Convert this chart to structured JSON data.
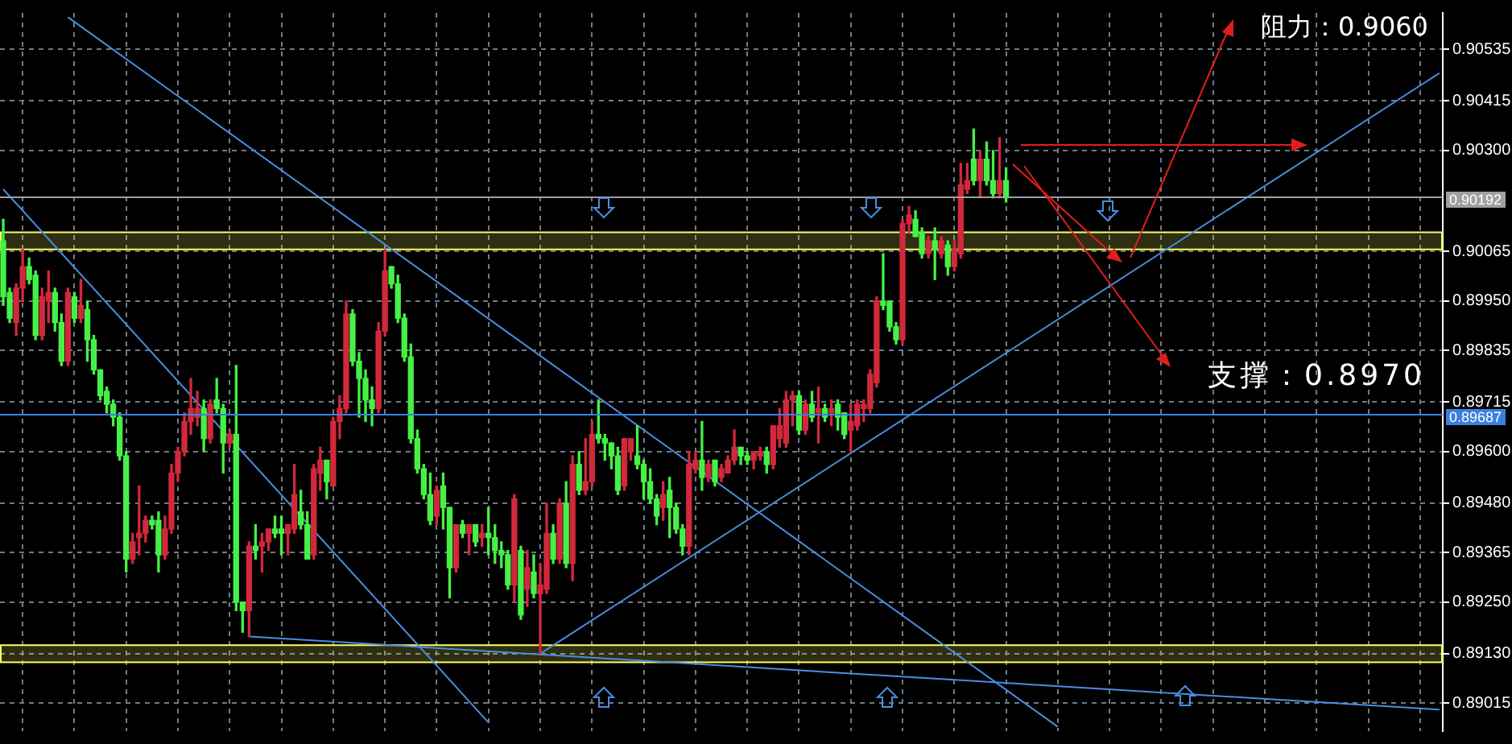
{
  "chart_data": {
    "type": "candlestick",
    "categories": [
      null,
      null,
      null,
      null,
      null,
      null,
      null,
      null,
      null,
      null,
      null,
      null,
      null,
      null,
      null,
      null,
      null,
      null,
      null,
      null,
      null,
      null,
      null,
      null,
      null,
      null,
      null,
      null,
      null,
      null,
      null,
      null,
      null,
      null,
      null,
      null,
      null,
      null,
      null,
      null,
      null,
      null,
      null,
      null,
      null,
      null,
      null,
      null,
      null,
      null,
      null,
      null,
      null,
      null,
      null,
      null,
      null,
      null,
      null,
      null,
      null,
      null,
      null,
      null,
      null,
      null,
      null,
      null,
      null,
      null,
      null,
      null,
      null,
      null,
      null,
      null,
      null,
      null,
      null,
      null,
      null,
      null,
      null,
      null,
      null,
      null,
      null,
      null,
      null,
      null,
      null,
      null,
      null,
      null,
      null,
      null,
      null,
      null,
      null,
      null,
      null,
      null,
      null,
      null,
      null,
      null,
      null,
      null,
      null,
      null,
      null,
      null,
      null,
      null,
      null,
      null,
      null,
      null,
      null,
      null,
      null,
      null,
      null,
      null,
      null,
      null,
      null,
      null,
      null,
      null,
      null,
      null,
      null,
      null,
      null,
      null,
      null,
      null,
      null,
      null,
      null,
      null,
      null,
      null,
      null,
      null,
      null,
      null,
      null,
      null,
      null,
      null,
      null,
      null,
      null,
      null,
      null,
      null,
      null,
      null,
      null,
      null,
      null,
      null,
      null,
      null,
      null,
      null,
      null,
      null,
      null,
      null,
      null,
      null,
      null,
      null,
      null,
      null,
      null,
      null,
      null,
      null,
      null,
      null,
      null,
      null,
      null,
      null,
      null,
      null,
      null,
      null,
      null,
      null,
      null,
      null,
      null,
      null,
      null,
      null,
      null,
      null,
      null,
      null,
      null,
      null,
      null,
      null,
      null,
      null,
      null,
      null,
      null,
      null,
      null,
      null,
      null,
      null,
      null,
      null,
      null,
      null,
      null
    ],
    "ohlc": [
      [
        0.9009,
        0.9014,
        0.8994,
        0.8996
      ],
      [
        0.8997,
        0.8998,
        0.899,
        0.8991
      ],
      [
        0.899,
        0.8999,
        0.8987,
        0.8998
      ],
      [
        0.8998,
        0.9007,
        0.8995,
        0.9003
      ],
      [
        0.9003,
        0.9005,
        0.8999,
        0.9
      ],
      [
        0.9001,
        0.9002,
        0.8986,
        0.8987
      ],
      [
        0.8987,
        0.8998,
        0.8986,
        0.8996
      ],
      [
        0.8995,
        0.9002,
        0.899,
        0.8997
      ],
      [
        0.8997,
        0.8998,
        0.8988,
        0.899
      ],
      [
        0.899,
        0.8992,
        0.898,
        0.8981
      ],
      [
        0.8981,
        0.8998,
        0.898,
        0.8997
      ],
      [
        0.8996,
        0.8997,
        0.899,
        0.8991
      ],
      [
        0.8991,
        0.9,
        0.899,
        0.8994
      ],
      [
        0.8993,
        0.8995,
        0.8981,
        0.8986
      ],
      [
        0.8986,
        0.8987,
        0.8978,
        0.8979
      ],
      [
        0.8979,
        0.8979,
        0.8972,
        0.8973
      ],
      [
        0.8974,
        0.8975,
        0.8969,
        0.8971
      ],
      [
        0.8971,
        0.8972,
        0.8966,
        0.8968
      ],
      [
        0.8968,
        0.8969,
        0.8958,
        0.8959
      ],
      [
        0.8959,
        0.896,
        0.8932,
        0.8935
      ],
      [
        0.8935,
        0.8941,
        0.8934,
        0.8939
      ],
      [
        0.894,
        0.8952,
        0.8936,
        0.8941
      ],
      [
        0.8941,
        0.8945,
        0.8939,
        0.8944
      ],
      [
        0.8944,
        0.8945,
        0.8942,
        0.8943
      ],
      [
        0.8944,
        0.8946,
        0.8932,
        0.8936
      ],
      [
        0.8936,
        0.8945,
        0.8935,
        0.8942
      ],
      [
        0.8942,
        0.8957,
        0.8941,
        0.8955
      ],
      [
        0.8955,
        0.8961,
        0.8953,
        0.896
      ],
      [
        0.896,
        0.8969,
        0.8959,
        0.8967
      ],
      [
        0.8967,
        0.8977,
        0.8964,
        0.897
      ],
      [
        0.8968,
        0.8974,
        0.8966,
        0.897
      ],
      [
        0.897,
        0.8972,
        0.896,
        0.8963
      ],
      [
        0.8963,
        0.8972,
        0.8962,
        0.8971
      ],
      [
        0.8972,
        0.8977,
        0.8969,
        0.897
      ],
      [
        0.897,
        0.8971,
        0.8955,
        0.8962
      ],
      [
        0.8962,
        0.8965,
        0.8961,
        0.8964
      ],
      [
        0.8964,
        0.898,
        0.8923,
        0.8925
      ],
      [
        0.8925,
        0.8925,
        0.8918,
        0.8923
      ],
      [
        0.8923,
        0.8939,
        0.8917,
        0.8938
      ],
      [
        0.8938,
        0.8943,
        0.8935,
        0.8937
      ],
      [
        0.8938,
        0.8941,
        0.8932,
        0.8939
      ],
      [
        0.8939,
        0.8942,
        0.8937,
        0.8942
      ],
      [
        0.8942,
        0.8945,
        0.894,
        0.8941
      ],
      [
        0.8942,
        0.8945,
        0.8936,
        0.8941
      ],
      [
        0.8941,
        0.8943,
        0.8936,
        0.8943
      ],
      [
        0.8942,
        0.8957,
        0.8941,
        0.895
      ],
      [
        0.8946,
        0.8951,
        0.8942,
        0.8943
      ],
      [
        0.8943,
        0.8946,
        0.8935,
        0.8935
      ],
      [
        0.8936,
        0.8957,
        0.8935,
        0.8956
      ],
      [
        0.8955,
        0.8961,
        0.8951,
        0.8958
      ],
      [
        0.8958,
        0.8958,
        0.8949,
        0.8953
      ],
      [
        0.8952,
        0.8968,
        0.8952,
        0.8967
      ],
      [
        0.8967,
        0.8973,
        0.8963,
        0.897
      ],
      [
        0.897,
        0.8995,
        0.8969,
        0.8992
      ],
      [
        0.8992,
        0.8993,
        0.898,
        0.8981
      ],
      [
        0.8981,
        0.8983,
        0.8968,
        0.8977
      ],
      [
        0.8977,
        0.8979,
        0.8967,
        0.8972
      ],
      [
        0.8972,
        0.8975,
        0.8966,
        0.897
      ],
      [
        0.897,
        0.899,
        0.8969,
        0.8988
      ],
      [
        0.8988,
        0.9007,
        0.8987,
        0.9002
      ],
      [
        0.9003,
        0.9003,
        0.8998,
        0.8999
      ],
      [
        0.8999,
        0.9001,
        0.899,
        0.8991
      ],
      [
        0.8991,
        0.8992,
        0.8981,
        0.8982
      ],
      [
        0.8982,
        0.8985,
        0.8962,
        0.8963
      ],
      [
        0.8963,
        0.8965,
        0.8955,
        0.8956
      ],
      [
        0.8956,
        0.8957,
        0.8949,
        0.895
      ],
      [
        0.895,
        0.8955,
        0.8943,
        0.8944
      ],
      [
        0.8945,
        0.8952,
        0.8943,
        0.8951
      ],
      [
        0.8952,
        0.8955,
        0.8942,
        0.8947
      ],
      [
        0.8947,
        0.8947,
        0.8926,
        0.8933
      ],
      [
        0.8933,
        0.8943,
        0.8932,
        0.8943
      ],
      [
        0.8943,
        0.8944,
        0.894,
        0.8941
      ],
      [
        0.8941,
        0.8943,
        0.8936,
        0.8943
      ],
      [
        0.8943,
        0.8943,
        0.8938,
        0.8939
      ],
      [
        0.894,
        0.8943,
        0.8938,
        0.8941
      ],
      [
        0.8941,
        0.8947,
        0.8936,
        0.894
      ],
      [
        0.894,
        0.8943,
        0.8934,
        0.8937
      ],
      [
        0.8937,
        0.8939,
        0.8933,
        0.8936
      ],
      [
        0.8936,
        0.8937,
        0.8928,
        0.8929
      ],
      [
        0.8929,
        0.895,
        0.8925,
        0.8949
      ],
      [
        0.8937,
        0.8938,
        0.8921,
        0.8922
      ],
      [
        0.8928,
        0.8937,
        0.8924,
        0.8933
      ],
      [
        0.8932,
        0.8936,
        0.8926,
        0.8927
      ],
      [
        0.8927,
        0.8934,
        0.8913,
        0.8929
      ],
      [
        0.8928,
        0.8948,
        0.8927,
        0.8941
      ],
      [
        0.8941,
        0.8943,
        0.8934,
        0.8935
      ],
      [
        0.8935,
        0.8949,
        0.8934,
        0.8948
      ],
      [
        0.8948,
        0.8953,
        0.8933,
        0.8934
      ],
      [
        0.8934,
        0.8959,
        0.893,
        0.8957
      ],
      [
        0.8957,
        0.896,
        0.895,
        0.8951
      ],
      [
        0.8951,
        0.8963,
        0.895,
        0.8953
      ],
      [
        0.8953,
        0.8967,
        0.8952,
        0.8964
      ],
      [
        0.8964,
        0.8972,
        0.8962,
        0.8963
      ],
      [
        0.8963,
        0.8964,
        0.8958,
        0.8962
      ],
      [
        0.8962,
        0.8962,
        0.8956,
        0.8959
      ],
      [
        0.8959,
        0.8961,
        0.895,
        0.8951
      ],
      [
        0.8952,
        0.8963,
        0.8951,
        0.8963
      ],
      [
        0.896,
        0.8963,
        0.8958,
        0.8963
      ],
      [
        0.8959,
        0.8966,
        0.8956,
        0.8957
      ],
      [
        0.8957,
        0.8958,
        0.8949,
        0.8953
      ],
      [
        0.8953,
        0.8956,
        0.8948,
        0.8949
      ],
      [
        0.8949,
        0.895,
        0.8943,
        0.8945
      ],
      [
        0.8947,
        0.8953,
        0.8944,
        0.895
      ],
      [
        0.8951,
        0.8954,
        0.894,
        0.8947
      ],
      [
        0.8947,
        0.8948,
        0.8941,
        0.8942
      ],
      [
        0.8942,
        0.8943,
        0.8936,
        0.8938
      ],
      [
        0.8938,
        0.896,
        0.8936,
        0.8957
      ],
      [
        0.8956,
        0.896,
        0.8955,
        0.8958
      ],
      [
        0.8958,
        0.8967,
        0.8951,
        0.8954
      ],
      [
        0.8954,
        0.8958,
        0.8953,
        0.8957
      ],
      [
        0.8958,
        0.8958,
        0.8952,
        0.8953
      ],
      [
        0.8954,
        0.8957,
        0.8953,
        0.8956
      ],
      [
        0.8955,
        0.8959,
        0.8955,
        0.8958
      ],
      [
        0.8958,
        0.8965,
        0.8957,
        0.8961
      ],
      [
        0.8961,
        0.8961,
        0.8957,
        0.8959
      ],
      [
        0.8959,
        0.896,
        0.8957,
        0.8958
      ],
      [
        0.8958,
        0.896,
        0.8956,
        0.896
      ],
      [
        0.8959,
        0.8961,
        0.8958,
        0.896
      ],
      [
        0.896,
        0.8961,
        0.8955,
        0.8957
      ],
      [
        0.8957,
        0.8966,
        0.8956,
        0.8966
      ],
      [
        0.8963,
        0.897,
        0.8961,
        0.8966
      ],
      [
        0.8962,
        0.8974,
        0.8961,
        0.8972
      ],
      [
        0.8972,
        0.8974,
        0.8966,
        0.8973
      ],
      [
        0.8973,
        0.8974,
        0.8964,
        0.8965
      ],
      [
        0.8965,
        0.8972,
        0.8964,
        0.8971
      ],
      [
        0.8971,
        0.8974,
        0.8967,
        0.8968
      ],
      [
        0.8969,
        0.8975,
        0.8962,
        0.897
      ],
      [
        0.897,
        0.8971,
        0.8967,
        0.8968
      ],
      [
        0.8969,
        0.8972,
        0.8966,
        0.897
      ],
      [
        0.8971,
        0.8972,
        0.8965,
        0.8968
      ],
      [
        0.8969,
        0.8969,
        0.8963,
        0.8964
      ],
      [
        0.8965,
        0.8971,
        0.896,
        0.8967
      ],
      [
        0.8966,
        0.8972,
        0.8965,
        0.8971
      ],
      [
        0.897,
        0.8972,
        0.8967,
        0.8971
      ],
      [
        0.897,
        0.8979,
        0.8969,
        0.8978
      ],
      [
        0.8976,
        0.8996,
        0.8975,
        0.8995
      ],
      [
        0.8995,
        0.9006,
        0.8993,
        0.8994
      ],
      [
        0.8995,
        0.8995,
        0.8988,
        0.8989
      ],
      [
        0.8989,
        0.899,
        0.8985,
        0.8986
      ],
      [
        0.8986,
        0.9014,
        0.8985,
        0.9013
      ],
      [
        0.9013,
        0.9017,
        0.9011,
        0.9015
      ],
      [
        0.9014,
        0.9016,
        0.901,
        0.901
      ],
      [
        0.9011,
        0.9012,
        0.9005,
        0.9006
      ],
      [
        0.9006,
        0.901,
        0.9005,
        0.9009
      ],
      [
        0.9009,
        0.9012,
        0.9,
        0.9007
      ],
      [
        0.9006,
        0.901,
        0.9005,
        0.9009
      ],
      [
        0.9008,
        0.9009,
        0.9001,
        0.9003
      ],
      [
        0.9003,
        0.9009,
        0.9002,
        0.9007
      ],
      [
        0.9006,
        0.9027,
        0.9005,
        0.9022
      ],
      [
        0.9021,
        0.9027,
        0.902,
        0.9023
      ],
      [
        0.9028,
        0.9035,
        0.9022,
        0.9023
      ],
      [
        0.9023,
        0.903,
        0.9019,
        0.9028
      ],
      [
        0.9028,
        0.9032,
        0.9022,
        0.9023
      ],
      [
        0.9023,
        0.903,
        0.9019,
        0.902
      ],
      [
        0.902,
        0.9033,
        0.9019,
        0.9023
      ],
      [
        0.9023,
        0.9026,
        0.9018,
        0.9019
      ],
      null,
      null,
      null,
      null,
      null,
      null,
      null,
      null,
      null,
      null,
      null,
      null,
      null,
      null,
      null,
      null,
      null,
      null,
      null,
      null,
      null,
      null,
      null,
      null,
      null,
      null,
      null,
      null,
      null,
      null,
      null,
      null,
      null,
      null,
      null,
      null,
      null,
      null,
      null,
      null,
      null,
      null,
      null,
      null,
      null,
      null,
      null,
      null,
      null,
      null,
      null,
      null,
      null,
      null,
      null,
      null,
      null,
      null,
      null,
      null,
      null,
      null,
      null,
      null,
      null,
      null,
      null
    ],
    "colors": [
      "#46f046",
      "#46f046",
      "#d2283c",
      "#d2283c",
      "#46f046",
      "#46f046",
      "#d2283c",
      "#d2283c",
      "#46f046",
      "#46f046",
      "#d2283c",
      "#46f046",
      "#d2283c",
      "#46f046",
      "#46f046",
      "#46f046",
      "#46f046",
      "#46f046",
      "#46f046",
      "#46f046",
      "#d2283c",
      "#d2283c",
      "#d2283c",
      "#46f046",
      "#46f046",
      "#d2283c",
      "#d2283c",
      "#d2283c",
      "#d2283c",
      "#d2283c",
      "#d2283c",
      "#46f046",
      "#d2283c",
      "#46f046",
      "#46f046",
      "#d2283c",
      "#46f046",
      "#46f046",
      "#d2283c",
      "#46f046",
      "#d2283c",
      "#d2283c",
      "#46f046",
      "#46f046",
      "#d2283c",
      "#d2283c",
      "#46f046",
      "#46f046",
      "#d2283c",
      "#d2283c",
      "#46f046",
      "#d2283c",
      "#d2283c",
      "#d2283c",
      "#46f046",
      "#46f046",
      "#46f046",
      "#46f046",
      "#d2283c",
      "#d2283c",
      "#46f046",
      "#46f046",
      "#46f046",
      "#46f046",
      "#46f046",
      "#46f046",
      "#46f046",
      "#d2283c",
      "#46f046",
      "#46f046",
      "#d2283c",
      "#46f046",
      "#d2283c",
      "#46f046",
      "#d2283c",
      "#46f046",
      "#46f046",
      "#46f046",
      "#46f046",
      "#d2283c",
      "#46f046",
      "#d2283c",
      "#46f046",
      "#d2283c",
      "#d2283c",
      "#46f046",
      "#d2283c",
      "#46f046",
      "#d2283c",
      "#46f046",
      "#d2283c",
      "#d2283c",
      "#46f046",
      "#46f046",
      "#46f046",
      "#46f046",
      "#d2283c",
      "#d2283c",
      "#46f046",
      "#46f046",
      "#46f046",
      "#46f046",
      "#d2283c",
      "#46f046",
      "#46f046",
      "#46f046",
      "#d2283c",
      "#d2283c",
      "#46f046",
      "#d2283c",
      "#46f046",
      "#d2283c",
      "#d2283c",
      "#d2283c",
      "#46f046",
      "#46f046",
      "#d2283c",
      "#d2283c",
      "#46f046",
      "#d2283c",
      "#d2283c",
      "#d2283c",
      "#d2283c",
      "#46f046",
      "#d2283c",
      "#46f046",
      "#d2283c",
      "#46f046",
      "#d2283c",
      "#46f046",
      "#46f046",
      "#d2283c",
      "#d2283c",
      "#d2283c",
      "#d2283c",
      "#d2283c",
      "#46f046",
      "#46f046",
      "#46f046",
      "#d2283c",
      "#d2283c",
      "#46f046",
      "#46f046",
      "#d2283c",
      "#46f046",
      "#d2283c",
      "#46f046",
      "#d2283c",
      "#d2283c",
      "#d2283c",
      "#46f046",
      "#d2283c",
      "#46f046",
      "#46f046",
      "#d2283c",
      "#46f046",
      null,
      null,
      null,
      null,
      null,
      null,
      null,
      null,
      null,
      null,
      null,
      null,
      null,
      null,
      null,
      null,
      null,
      null,
      null,
      null,
      null,
      null,
      null,
      null,
      null,
      null,
      null,
      null,
      null,
      null,
      null,
      null,
      null,
      null,
      null,
      null,
      null,
      null,
      null,
      null,
      null,
      null,
      null,
      null,
      null,
      null,
      null,
      null,
      null,
      null,
      null,
      null,
      null,
      null,
      null,
      null,
      null,
      null,
      null,
      null,
      null,
      null,
      null,
      null,
      null,
      null,
      null
    ],
    "series": [
      {
        "type": "line",
        "color": "#4a8de0",
        "values": [
          0.9021,
          null,
          null,
          null,
          null,
          null,
          null,
          null,
          null,
          null,
          null,
          null,
          null,
          null,
          null,
          null,
          null,
          null,
          null,
          null,
          null,
          null,
          null,
          null,
          null,
          null,
          null,
          null,
          null,
          null,
          null,
          null,
          null,
          null,
          null,
          null,
          null,
          null,
          null,
          null,
          null,
          null,
          null,
          null,
          null,
          null,
          null,
          null,
          null,
          null,
          null,
          null,
          null,
          null,
          null,
          null,
          null,
          null,
          null,
          null,
          null,
          null,
          null,
          null,
          null,
          null,
          null,
          null,
          null,
          null,
          null,
          null,
          null,
          null,
          null,
          0.8897,
          null,
          null,
          null,
          null,
          null,
          null,
          null,
          null,
          null,
          null,
          null,
          null,
          null,
          null,
          null,
          null,
          null,
          null,
          null,
          null,
          null,
          null,
          null,
          null,
          null,
          null,
          null,
          null,
          null,
          null,
          null,
          null,
          null,
          null,
          null,
          null,
          null,
          null,
          null,
          null,
          null,
          null,
          null,
          null,
          null,
          null,
          null,
          null,
          null,
          null,
          null,
          null,
          null,
          null,
          null,
          null,
          null,
          null,
          null,
          null,
          null,
          null,
          null,
          null,
          null,
          null,
          null,
          null,
          null,
          null,
          null,
          null,
          null,
          null,
          null,
          null,
          null,
          null,
          null,
          null,
          null,
          null,
          null,
          null,
          null,
          null,
          null,
          null,
          null,
          null,
          null,
          null,
          null,
          null,
          null,
          null,
          null,
          null,
          null,
          null,
          null,
          null,
          null,
          null,
          null,
          null,
          null,
          null,
          null,
          null,
          null,
          null,
          null,
          null,
          null,
          null,
          null,
          null,
          null,
          null,
          null,
          null,
          null,
          null,
          null,
          null,
          null,
          null,
          null,
          null,
          null,
          null,
          null,
          null,
          null,
          null,
          null,
          null,
          null,
          null,
          null,
          null,
          null,
          null,
          null,
          null,
          null
        ]
      },
      {
        "type": "line",
        "color": "#4a8de0",
        "values": [
          null,
          null,
          null,
          null,
          null,
          null,
          null,
          null,
          null,
          null,
          0.9061,
          null,
          null,
          null,
          null,
          null,
          null,
          null,
          null,
          null,
          null,
          null,
          null,
          null,
          null,
          null,
          null,
          null,
          null,
          null,
          null,
          null,
          null,
          null,
          null,
          null,
          null,
          null,
          null,
          null,
          null,
          null,
          null,
          null,
          null,
          null,
          null,
          null,
          null,
          null,
          null,
          null,
          null,
          null,
          null,
          null,
          null,
          null,
          null,
          null,
          null,
          null,
          null,
          null,
          null,
          null,
          null,
          null,
          null,
          null,
          null,
          null,
          null,
          null,
          null,
          null,
          null,
          null,
          null,
          null,
          null,
          null,
          null,
          null,
          null,
          null,
          null,
          null,
          null,
          null,
          null,
          null,
          null,
          null,
          null,
          null,
          null,
          null,
          null,
          null,
          null,
          null,
          null,
          null,
          null,
          null,
          null,
          null,
          null,
          null,
          null,
          null,
          null,
          null,
          null,
          null,
          null,
          null,
          null,
          null,
          null,
          null,
          null,
          null,
          null,
          null,
          null,
          null,
          null,
          null,
          null,
          null,
          null,
          null,
          null,
          null,
          null,
          null,
          null,
          null,
          null,
          null,
          null,
          null,
          null,
          null,
          null,
          null,
          null,
          null,
          null,
          null,
          null,
          null,
          null,
          null,
          null,
          null,
          null,
          null,
          null,
          null,
          null,
          0.8896,
          null,
          null,
          null,
          null,
          null,
          null,
          null,
          null,
          null,
          null,
          null,
          null,
          null,
          null,
          null,
          null,
          null,
          null,
          null,
          null,
          null,
          null,
          null,
          null,
          null,
          null,
          null,
          null,
          null,
          null,
          null,
          null,
          null,
          null,
          null,
          null,
          null,
          null,
          null,
          null,
          null,
          null,
          null,
          null,
          null,
          null,
          null,
          null,
          null,
          null,
          null,
          null,
          null,
          null,
          null,
          null,
          null,
          null,
          null
        ]
      },
      {
        "type": "line",
        "color": "#4a8de0",
        "values": [
          null,
          null,
          null,
          null,
          null,
          null,
          null,
          null,
          null,
          null,
          null,
          null,
          null,
          null,
          null,
          null,
          null,
          null,
          null,
          null,
          null,
          null,
          null,
          null,
          null,
          null,
          null,
          null,
          null,
          null,
          null,
          null,
          null,
          null,
          null,
          null,
          null,
          null,
          null,
          null,
          null,
          null,
          null,
          null,
          null,
          null,
          null,
          null,
          null,
          null,
          null,
          null,
          null,
          null,
          null,
          null,
          null,
          null,
          null,
          null,
          null,
          null,
          null,
          null,
          null,
          null,
          null,
          null,
          null,
          null,
          null,
          null,
          null,
          null,
          null,
          null,
          null,
          null,
          null,
          null,
          null,
          null,
          null,
          0.8913,
          null,
          null,
          null,
          null,
          null,
          null,
          null,
          null,
          null,
          null,
          null,
          null,
          null,
          null,
          null,
          null,
          null,
          null,
          null,
          null,
          null,
          null,
          null,
          null,
          null,
          null,
          null,
          null,
          null,
          null,
          null,
          null,
          null,
          null,
          null,
          null,
          null,
          null,
          null,
          null,
          null,
          null,
          null,
          null,
          null,
          null,
          null,
          null,
          null,
          null,
          null,
          null,
          null,
          null,
          null,
          null,
          null,
          null,
          null,
          null,
          null,
          null,
          null,
          null,
          null,
          null,
          null,
          null,
          null,
          null,
          null,
          null,
          null,
          null,
          null,
          null,
          null,
          null,
          null,
          null,
          null,
          null,
          null,
          null,
          null,
          null,
          null,
          null,
          null,
          null,
          null,
          null,
          null,
          null,
          null,
          null,
          null,
          null,
          null,
          null,
          null,
          null,
          null,
          null,
          null,
          null,
          null,
          null,
          null,
          null,
          null,
          null,
          null,
          null,
          null,
          null,
          null,
          null,
          null,
          null,
          null,
          null,
          null,
          null,
          null,
          null,
          null,
          null,
          null,
          null,
          null,
          null,
          null,
          null,
          null,
          null,
          null,
          null,
          0.9048
        ]
      },
      {
        "type": "line",
        "color": "#4a8de0",
        "values": [
          null,
          null,
          null,
          null,
          null,
          null,
          null,
          null,
          null,
          null,
          null,
          null,
          null,
          null,
          null,
          null,
          null,
          null,
          null,
          null,
          null,
          null,
          null,
          null,
          null,
          null,
          null,
          null,
          null,
          null,
          null,
          null,
          null,
          null,
          null,
          null,
          null,
          null,
          0.8917,
          null,
          null,
          null,
          null,
          null,
          null,
          null,
          null,
          null,
          null,
          null,
          null,
          null,
          null,
          null,
          null,
          null,
          null,
          null,
          null,
          null,
          null,
          null,
          null,
          null,
          null,
          null,
          null,
          null,
          null,
          null,
          null,
          null,
          null,
          null,
          null,
          null,
          null,
          null,
          null,
          null,
          null,
          null,
          null,
          null,
          null,
          null,
          null,
          null,
          null,
          null,
          null,
          null,
          null,
          null,
          null,
          null,
          null,
          null,
          null,
          null,
          null,
          null,
          null,
          null,
          null,
          null,
          null,
          null,
          null,
          null,
          null,
          null,
          null,
          null,
          null,
          null,
          null,
          null,
          null,
          null,
          null,
          null,
          null,
          null,
          null,
          null,
          null,
          null,
          null,
          null,
          null,
          null,
          null,
          null,
          null,
          null,
          null,
          null,
          null,
          null,
          null,
          null,
          null,
          null,
          null,
          null,
          null,
          null,
          null,
          null,
          null,
          null,
          null,
          null,
          null,
          null,
          null,
          null,
          null,
          null,
          null,
          null,
          null,
          null,
          null,
          null,
          null,
          null,
          null,
          null,
          null,
          null,
          null,
          null,
          null,
          null,
          null,
          null,
          null,
          null,
          null,
          null,
          null,
          null,
          null,
          null,
          null,
          null,
          null,
          null,
          null,
          null,
          null,
          null,
          null,
          null,
          null,
          null,
          null,
          null,
          null,
          null,
          null,
          null,
          null,
          null,
          null,
          null,
          null,
          null,
          null,
          null,
          null,
          null,
          null,
          null,
          null,
          null,
          null,
          null,
          null,
          null,
          0.89
        ]
      }
    ],
    "ylim": [
      0.8895,
      0.9062
    ],
    "yticks": [
      {
        "value": 0.90535,
        "label": "0.90535"
      },
      {
        "value": 0.90415,
        "label": "0.90415"
      },
      {
        "value": 0.903,
        "label": "0.90300"
      },
      {
        "value": 0.90065,
        "label": "0.90065"
      },
      {
        "value": 0.8995,
        "label": "0.89950"
      },
      {
        "value": 0.89835,
        "label": "0.89835"
      },
      {
        "value": 0.89715,
        "label": "0.89715"
      },
      {
        "value": 0.896,
        "label": "0.89600"
      },
      {
        "value": 0.8948,
        "label": "0.89480"
      },
      {
        "value": 0.89365,
        "label": "0.89365"
      },
      {
        "value": 0.8925,
        "label": "0.89250"
      },
      {
        "value": 0.8913,
        "label": "0.89130"
      },
      {
        "value": 0.89015,
        "label": "0.89015"
      }
    ],
    "ref_lines": [
      {
        "axis": "y",
        "value": 0.90192,
        "label": "0.90192",
        "color": "#a0a0a0"
      },
      {
        "axis": "y",
        "value": 0.89687,
        "label": "0.89687",
        "color": "#3c7fe0"
      }
    ],
    "bands": [
      {
        "axis": "y",
        "from": 0.9007,
        "to": 0.9011,
        "color": "#ffff66"
      },
      {
        "axis": "y",
        "from": 0.8911,
        "to": 0.8915,
        "color": "#ffff66"
      }
    ],
    "annotations": [
      "阻力：0.9060",
      "支撑：0.8970"
    ],
    "grid": true,
    "legend": false,
    "tick_labels": "y"
  }
}
